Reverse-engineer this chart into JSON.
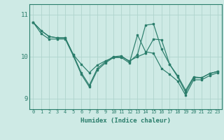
{
  "xlabel": "Humidex (Indice chaleur)",
  "bg_color": "#ceeae5",
  "line_color": "#2a7d6b",
  "grid_color": "#afd4cd",
  "series": [
    [
      10.82,
      10.62,
      10.48,
      10.45,
      10.45,
      10.05,
      9.82,
      9.62,
      9.8,
      9.9,
      9.98,
      10.0,
      9.9,
      10.0,
      10.08,
      10.42,
      10.4,
      9.82,
      9.55,
      9.2,
      9.52,
      9.5,
      9.6,
      9.65
    ],
    [
      10.82,
      10.62,
      10.48,
      10.45,
      10.45,
      10.05,
      9.62,
      9.32,
      9.72,
      9.88,
      10.0,
      10.02,
      9.88,
      10.05,
      10.75,
      10.78,
      10.18,
      9.82,
      9.52,
      9.15,
      9.5,
      9.5,
      9.6,
      9.65
    ],
    [
      10.82,
      10.55,
      10.42,
      10.42,
      10.42,
      10.02,
      9.58,
      9.28,
      9.68,
      9.85,
      9.98,
      9.98,
      9.85,
      10.52,
      10.12,
      10.08,
      9.72,
      9.58,
      9.42,
      9.08,
      9.45,
      9.45,
      9.55,
      9.62
    ]
  ],
  "ylim": [
    8.75,
    11.25
  ],
  "yticks": [
    9,
    10,
    11
  ],
  "xlim": [
    -0.5,
    23.5
  ],
  "xticks": [
    0,
    1,
    2,
    3,
    4,
    5,
    6,
    7,
    8,
    9,
    10,
    11,
    12,
    13,
    14,
    15,
    16,
    17,
    18,
    19,
    20,
    21,
    22,
    23
  ]
}
